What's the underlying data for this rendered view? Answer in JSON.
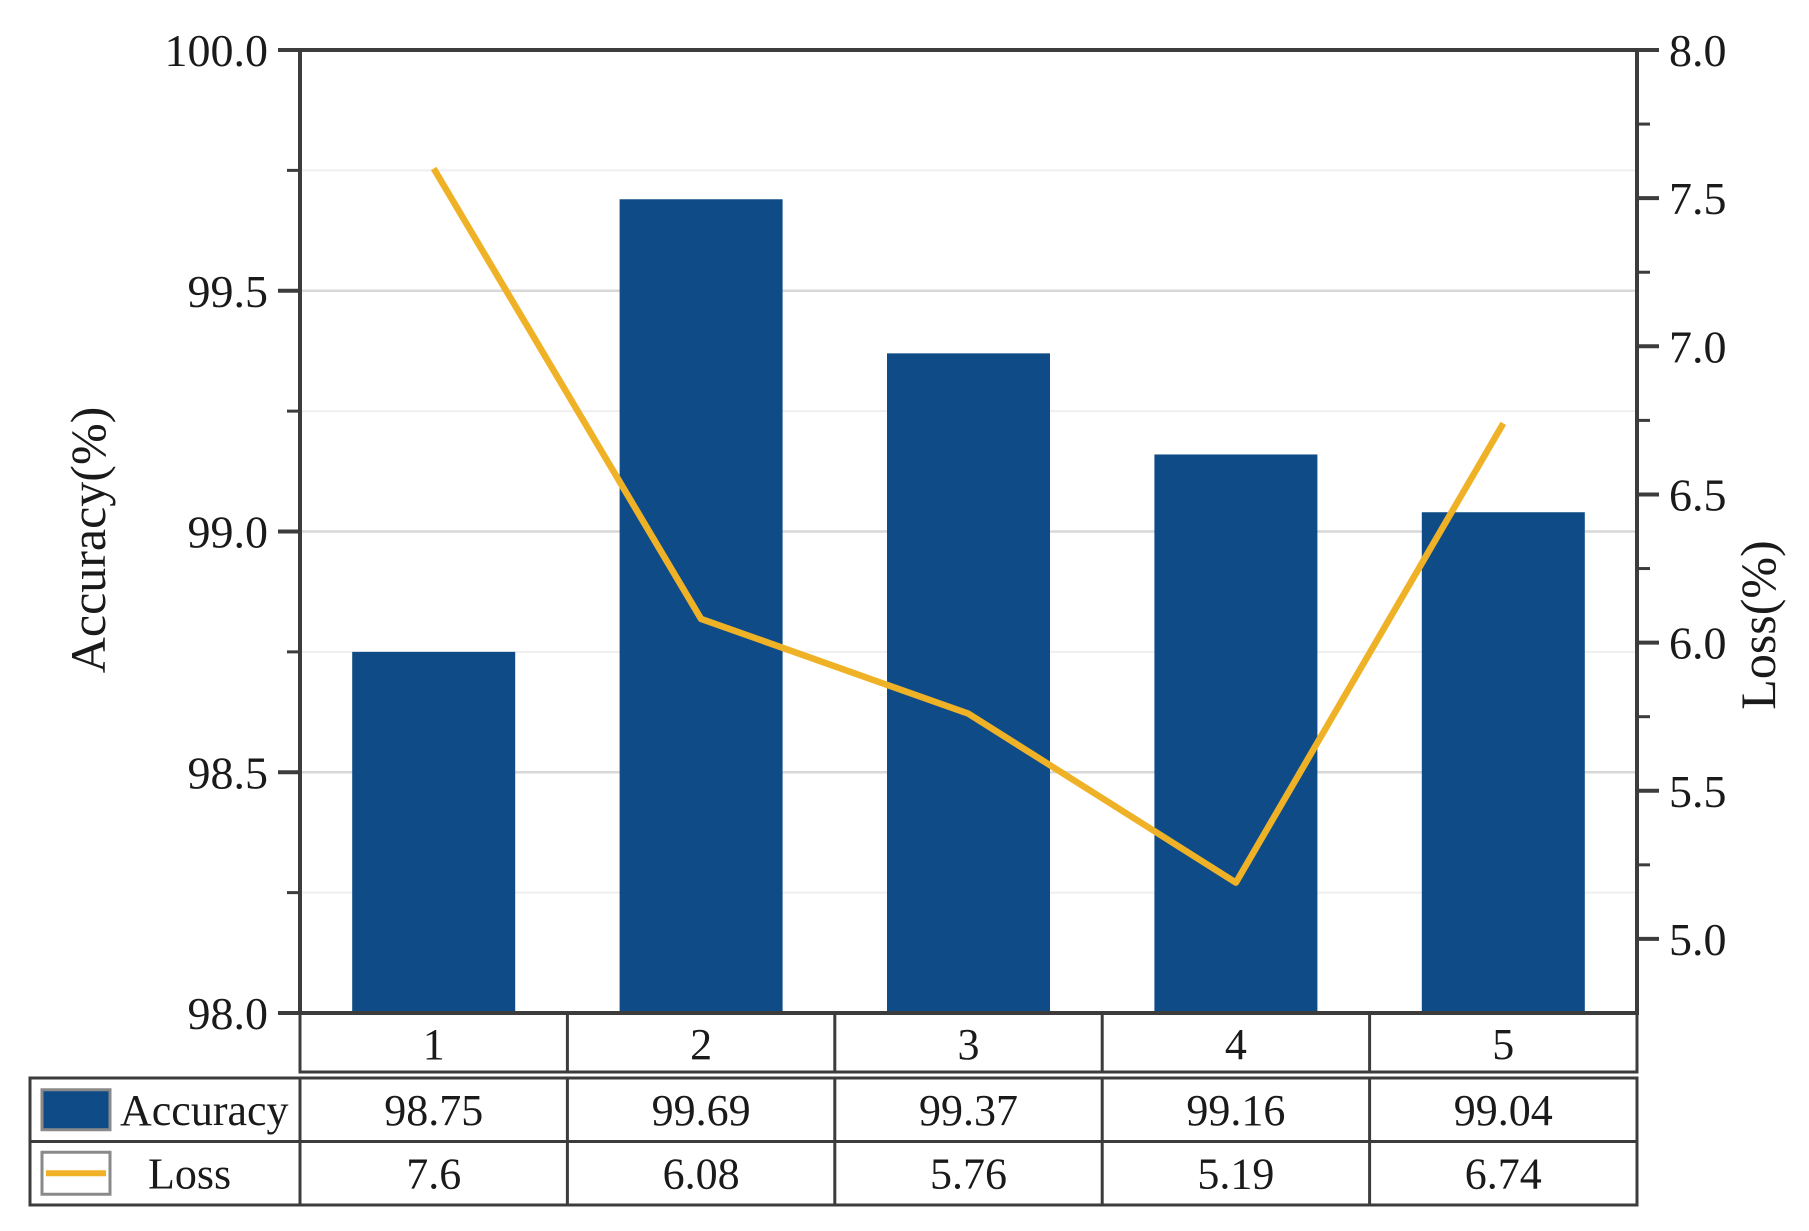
{
  "chart_data": {
    "type": "combo-bar-line",
    "title": "",
    "categories": [
      "1",
      "2",
      "3",
      "4",
      "5"
    ],
    "series": [
      {
        "name": "Accuracy",
        "type": "bar",
        "axis": "left",
        "color": "#0F4C87",
        "values": [
          98.75,
          99.69,
          99.37,
          99.16,
          99.04
        ],
        "display_values": [
          "98.75",
          "99.69",
          "99.37",
          "99.16",
          "99.04"
        ]
      },
      {
        "name": "Loss",
        "type": "line",
        "axis": "right",
        "color": "#EFB226",
        "values": [
          7.6,
          6.08,
          5.76,
          5.19,
          6.74
        ],
        "display_values": [
          "7.6",
          "6.08",
          "5.76",
          "5.19",
          "6.74"
        ]
      }
    ],
    "left_axis": {
      "label": "Accuracy(%)",
      "min": 98.0,
      "max": 100.0,
      "tick_values": [
        100.0,
        99.5,
        99.0,
        98.5,
        98.0
      ],
      "tick_labels": [
        "100.0",
        "99.5",
        "99.0",
        "98.5",
        "98.0"
      ],
      "minor_tick_values": [
        99.75,
        99.25,
        98.75,
        98.25
      ]
    },
    "right_axis": {
      "label": "Loss(%)",
      "min": 4.75,
      "max": 8.0,
      "tick_values": [
        8.0,
        7.5,
        7.0,
        6.5,
        6.0,
        5.5,
        5.0
      ],
      "tick_labels": [
        "8.0",
        "7.5",
        "7.0",
        "6.5",
        "6.0",
        "5.5",
        "5.0"
      ],
      "minor_tick_values": [
        7.75,
        7.25,
        6.75,
        6.25,
        5.75,
        5.25
      ]
    },
    "grid": {
      "major_on": true,
      "minor_on": true
    },
    "legend_position": "bottom-table",
    "colors": {
      "bar": "#0F4C87",
      "line": "#EFB226",
      "frame": "#3C3C3C",
      "grid_major": "#D8D8D8",
      "grid_minor": "#EFEFEF",
      "swatch_border": "#8A8A8A",
      "text": "#1A1A1A"
    }
  }
}
